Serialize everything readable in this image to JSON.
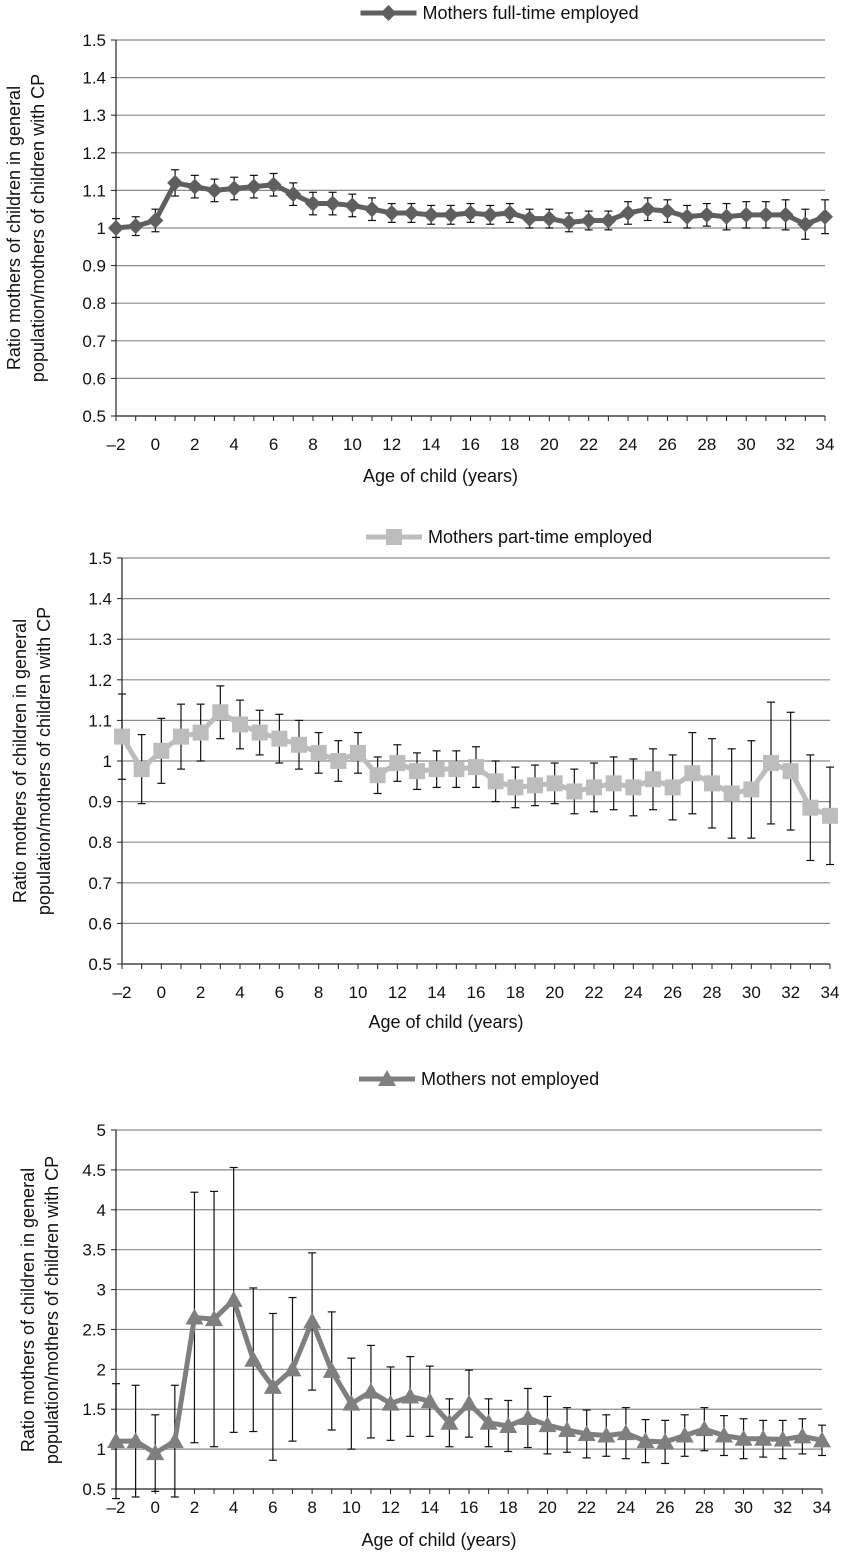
{
  "chart_data": [
    {
      "type": "line",
      "legend_position": "top",
      "grid": true,
      "xlabel": "Age of child (years)",
      "ylabel_lines": [
        "Ratio mothers of children in general",
        "population/mothers of children with CP"
      ],
      "xlim": [
        -2,
        34
      ],
      "ylim": [
        0.5,
        1.5
      ],
      "xticks": [
        "–2",
        "0",
        "2",
        "4",
        "6",
        "8",
        "10",
        "12",
        "14",
        "16",
        "18",
        "20",
        "22",
        "24",
        "26",
        "28",
        "30",
        "32",
        "34"
      ],
      "yticks": [
        "0.5",
        "0.6",
        "0.7",
        "0.8",
        "0.9",
        "1",
        "1.1",
        "1.2",
        "1.3",
        "1.4",
        "1.5"
      ],
      "series": [
        {
          "name": "Mothers full-time employed",
          "marker": "diamond",
          "color": "#5f5f5f",
          "x": [
            -2,
            -1,
            0,
            1,
            2,
            3,
            4,
            5,
            6,
            7,
            8,
            9,
            10,
            11,
            12,
            13,
            14,
            15,
            16,
            17,
            18,
            19,
            20,
            21,
            22,
            23,
            24,
            25,
            26,
            27,
            28,
            29,
            30,
            31,
            32,
            33,
            34
          ],
          "y": [
            1.0,
            1.005,
            1.02,
            1.12,
            1.11,
            1.1,
            1.105,
            1.11,
            1.115,
            1.09,
            1.065,
            1.065,
            1.06,
            1.05,
            1.04,
            1.04,
            1.035,
            1.035,
            1.04,
            1.035,
            1.04,
            1.025,
            1.025,
            1.015,
            1.02,
            1.02,
            1.04,
            1.05,
            1.045,
            1.03,
            1.035,
            1.03,
            1.035,
            1.035,
            1.035,
            1.01,
            1.03
          ],
          "err": [
            0.025,
            0.025,
            0.03,
            0.035,
            0.03,
            0.03,
            0.03,
            0.03,
            0.03,
            0.03,
            0.03,
            0.03,
            0.03,
            0.03,
            0.025,
            0.025,
            0.025,
            0.025,
            0.025,
            0.025,
            0.025,
            0.025,
            0.025,
            0.025,
            0.025,
            0.025,
            0.03,
            0.03,
            0.03,
            0.03,
            0.03,
            0.035,
            0.035,
            0.035,
            0.04,
            0.04,
            0.045
          ]
        }
      ]
    },
    {
      "type": "line",
      "legend_position": "top",
      "grid": true,
      "xlabel": "Age of child (years)",
      "ylabel_lines": [
        "Ratio mothers of children in general",
        "population/mothers of children with CP"
      ],
      "xlim": [
        -2,
        34
      ],
      "ylim": [
        0.5,
        1.5
      ],
      "xticks": [
        "–2",
        "0",
        "2",
        "4",
        "6",
        "8",
        "10",
        "12",
        "14",
        "16",
        "18",
        "20",
        "22",
        "24",
        "26",
        "28",
        "30",
        "32",
        "34"
      ],
      "yticks": [
        "0.5",
        "0.6",
        "0.7",
        "0.8",
        "0.9",
        "1",
        "1.1",
        "1.2",
        "1.3",
        "1.4",
        "1.5"
      ],
      "series": [
        {
          "name": "Mothers part-time employed",
          "marker": "square",
          "color": "#bdbdbd",
          "x": [
            -2,
            -1,
            0,
            1,
            2,
            3,
            4,
            5,
            6,
            7,
            8,
            9,
            10,
            11,
            12,
            13,
            14,
            15,
            16,
            17,
            18,
            19,
            20,
            21,
            22,
            23,
            24,
            25,
            26,
            27,
            28,
            29,
            30,
            31,
            32,
            33,
            34
          ],
          "y": [
            1.06,
            0.98,
            1.025,
            1.06,
            1.07,
            1.12,
            1.09,
            1.07,
            1.055,
            1.04,
            1.02,
            1.0,
            1.02,
            0.965,
            0.995,
            0.975,
            0.98,
            0.98,
            0.985,
            0.95,
            0.935,
            0.94,
            0.945,
            0.925,
            0.935,
            0.945,
            0.935,
            0.955,
            0.935,
            0.97,
            0.945,
            0.92,
            0.93,
            0.995,
            0.975,
            0.885,
            0.865
          ],
          "err": [
            0.105,
            0.085,
            0.08,
            0.08,
            0.07,
            0.065,
            0.06,
            0.055,
            0.06,
            0.06,
            0.05,
            0.05,
            0.05,
            0.045,
            0.045,
            0.045,
            0.045,
            0.045,
            0.05,
            0.05,
            0.05,
            0.05,
            0.05,
            0.055,
            0.06,
            0.065,
            0.07,
            0.075,
            0.08,
            0.1,
            0.11,
            0.11,
            0.12,
            0.15,
            0.145,
            0.13,
            0.12
          ]
        }
      ]
    },
    {
      "type": "line",
      "legend_position": "top",
      "grid": true,
      "xlabel": "Age of child (years)",
      "ylabel_lines": [
        "Ratio mothers of children in general",
        "population/mothers of children with CP"
      ],
      "xlim": [
        -2,
        34
      ],
      "ylim": [
        0.5,
        5
      ],
      "xticks": [
        "–2",
        "0",
        "2",
        "4",
        "6",
        "8",
        "10",
        "12",
        "14",
        "16",
        "18",
        "20",
        "22",
        "24",
        "26",
        "28",
        "30",
        "32",
        "34"
      ],
      "yticks": [
        "0.5",
        "1",
        "1.5",
        "2",
        "2.5",
        "3",
        "3.5",
        "4",
        "4.5",
        "5"
      ],
      "series": [
        {
          "name": "Mothers not employed",
          "marker": "triangle",
          "color": "#7f7f7f",
          "x": [
            -2,
            -1,
            0,
            1,
            2,
            3,
            4,
            5,
            6,
            7,
            8,
            9,
            10,
            11,
            12,
            13,
            14,
            15,
            16,
            17,
            18,
            19,
            20,
            21,
            22,
            23,
            24,
            25,
            26,
            27,
            28,
            29,
            30,
            31,
            32,
            33,
            34
          ],
          "y": [
            1.1,
            1.1,
            0.95,
            1.1,
            2.65,
            2.63,
            2.87,
            2.12,
            1.78,
            2.0,
            2.6,
            1.98,
            1.57,
            1.72,
            1.57,
            1.66,
            1.6,
            1.33,
            1.57,
            1.33,
            1.29,
            1.39,
            1.3,
            1.24,
            1.19,
            1.17,
            1.2,
            1.1,
            1.09,
            1.17,
            1.25,
            1.17,
            1.13,
            1.13,
            1.12,
            1.16,
            1.11
          ],
          "err": [
            0.72,
            0.7,
            0.48,
            0.7,
            1.57,
            1.6,
            1.66,
            0.9,
            0.92,
            0.9,
            0.86,
            0.74,
            0.57,
            0.58,
            0.46,
            0.5,
            0.44,
            0.3,
            0.42,
            0.3,
            0.32,
            0.37,
            0.36,
            0.28,
            0.3,
            0.26,
            0.32,
            0.27,
            0.27,
            0.26,
            0.27,
            0.25,
            0.25,
            0.23,
            0.24,
            0.22,
            0.19
          ]
        }
      ]
    }
  ]
}
